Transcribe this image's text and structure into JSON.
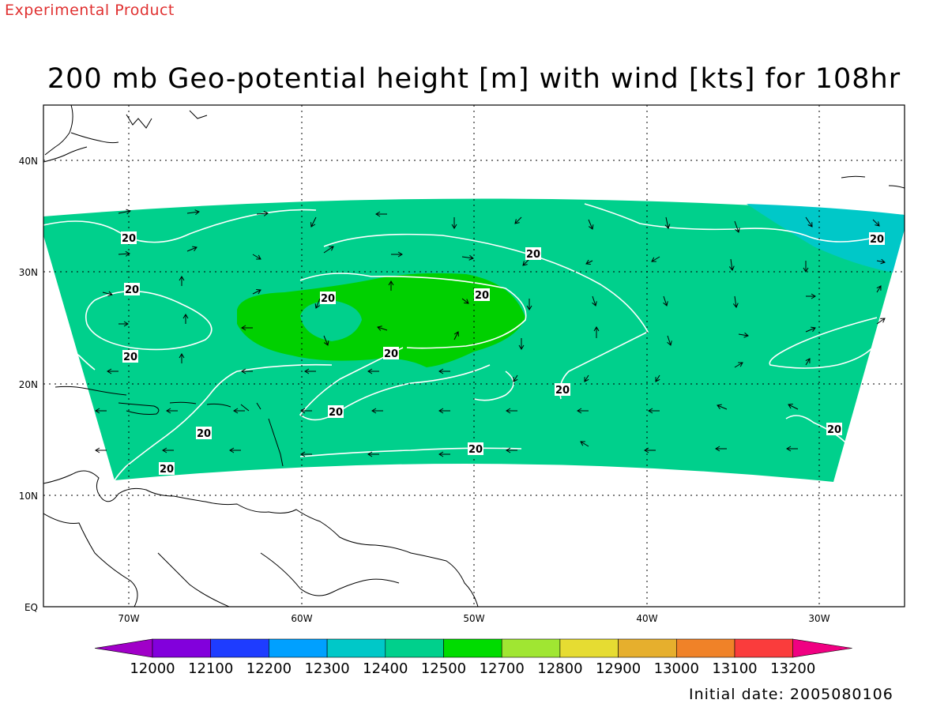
{
  "header": {
    "experimental_label": "Experimental Product",
    "title": "200 mb Geo-potential height [m] with wind [kts] for 108hr",
    "initial_date": "Initial date: 2005080106"
  },
  "map": {
    "lat_labels": [
      "40N",
      "30N",
      "20N",
      "10N",
      "EQ"
    ],
    "lon_labels": [
      "70W",
      "60W",
      "50W",
      "40W",
      "30W"
    ],
    "isotach_value": "20",
    "isotach_label_count": 13,
    "colors": {
      "field_12400": "#00d08c",
      "field_12300": "#00c8c8",
      "field_12500": "#00d000",
      "contour": "#ffffff",
      "land_outline": "#000000"
    }
  },
  "colorbar": {
    "labels": [
      "12000",
      "12100",
      "12200",
      "12300",
      "12400",
      "12500",
      "12700",
      "12800",
      "12900",
      "13000",
      "13100",
      "13200"
    ],
    "colors": [
      "#a000c8",
      "#8200dc",
      "#1e3cff",
      "#00a0ff",
      "#00c8c8",
      "#00d08c",
      "#00dc00",
      "#a0e632",
      "#e6dc32",
      "#e6af2d",
      "#f08228",
      "#fa3c3c",
      "#f00082"
    ]
  }
}
